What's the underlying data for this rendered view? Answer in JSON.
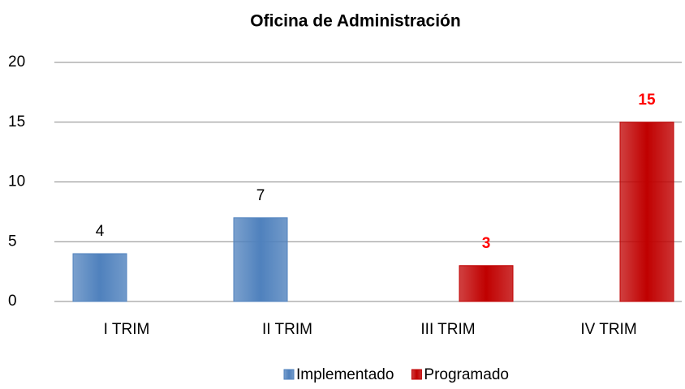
{
  "chart_data": {
    "type": "bar",
    "title": "Oficina de Administración",
    "categories": [
      "I TRIM",
      "II TRIM",
      "III TRIM",
      "IV TRIM"
    ],
    "series": [
      {
        "name": "Implementado",
        "color": "#4f81bd",
        "label_color": "#000000",
        "values": [
          4,
          7,
          null,
          null
        ]
      },
      {
        "name": "Programado",
        "color": "#c00000",
        "label_color": "#ff0000",
        "values": [
          null,
          null,
          3,
          15
        ]
      }
    ],
    "ylim": [
      0,
      20
    ],
    "yticks": [
      0,
      5,
      10,
      15,
      20
    ],
    "grid": true,
    "legend": "bottom"
  }
}
